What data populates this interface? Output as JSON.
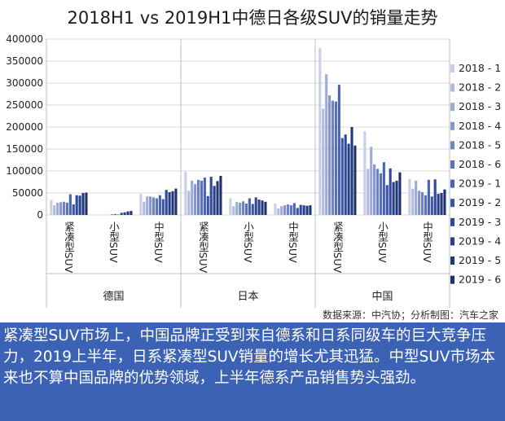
{
  "title": "2018H1 vs 2019H1中德日各级SUV的销量走势",
  "source": "数据来源：中汽协；分析制图：汽车之家",
  "caption": "紧凑型SUV市场上，中国品牌正受到来自德系和日系同级车的巨大竞争压力，2019上半年，日系紧凑型SUV销量的增长尤其迅猛。中型SUV市场本来也不算中国品牌的优势领域，上半年德系产品销售势头强劲。",
  "colors": {
    "caption_bg": "#3b62b5",
    "series": [
      "#c9cfe8",
      "#b2bcdf",
      "#9eabd7",
      "#8595cf",
      "#6f83c6",
      "#5b72be",
      "#4862b4",
      "#3a55a8",
      "#30489a",
      "#283f8a",
      "#23387b",
      "#1f316d"
    ]
  },
  "chart_data": {
    "type": "bar",
    "ylim": [
      0,
      400000
    ],
    "yticks": [
      0,
      50000,
      100000,
      150000,
      200000,
      250000,
      300000,
      350000,
      400000
    ],
    "grid": true,
    "legend_position": "right",
    "groups": [
      {
        "name": "德国",
        "categories": [
          "紧凑型SUV",
          "小型SUV",
          "中型SUV"
        ]
      },
      {
        "name": "日本",
        "categories": [
          "紧凑型SUV",
          "小型SUV",
          "中型SUV"
        ]
      },
      {
        "name": "中国",
        "categories": [
          "紧凑型SUV",
          "小型SUV",
          "中型SUV"
        ]
      }
    ],
    "series": [
      {
        "name": "2018 - 1",
        "values": [
          34000,
          0,
          48000,
          98000,
          38000,
          26000,
          380000,
          190000,
          82000
        ]
      },
      {
        "name": "2018 - 2",
        "values": [
          22000,
          0,
          30000,
          55000,
          20000,
          15000,
          242000,
          105000,
          60000
        ]
      },
      {
        "name": "2018 - 3",
        "values": [
          28000,
          0,
          42000,
          78000,
          30000,
          20000,
          320000,
          155000,
          78000
        ]
      },
      {
        "name": "2018 - 4",
        "values": [
          29000,
          0,
          42000,
          70000,
          28000,
          22000,
          272000,
          115000,
          55000
        ]
      },
      {
        "name": "2018 - 5",
        "values": [
          30000,
          0,
          40000,
          80000,
          31000,
          24000,
          260000,
          105000,
          52000
        ]
      },
      {
        "name": "2018 - 6",
        "values": [
          28000,
          1500,
          38000,
          78000,
          26000,
          22000,
          258000,
          95000,
          45000
        ]
      },
      {
        "name": "2019 - 1",
        "values": [
          47000,
          2000,
          45000,
          85000,
          38000,
          27000,
          296000,
          120000,
          80000
        ]
      },
      {
        "name": "2019 - 2",
        "values": [
          24000,
          1000,
          36000,
          43000,
          25000,
          16000,
          175000,
          68000,
          42000
        ]
      },
      {
        "name": "2019 - 3",
        "values": [
          45000,
          5000,
          57000,
          87000,
          40000,
          23000,
          183000,
          106000,
          81000
        ]
      },
      {
        "name": "2019 - 4",
        "values": [
          44000,
          6000,
          52000,
          66000,
          35000,
          22000,
          162000,
          75000,
          48000
        ]
      },
      {
        "name": "2019 - 5",
        "values": [
          50000,
          8000,
          54000,
          77000,
          33000,
          21000,
          200000,
          78000,
          50000
        ]
      },
      {
        "name": "2019 - 6",
        "values": [
          51000,
          9000,
          60000,
          89000,
          30000,
          22000,
          158000,
          97000,
          58000
        ]
      }
    ]
  }
}
